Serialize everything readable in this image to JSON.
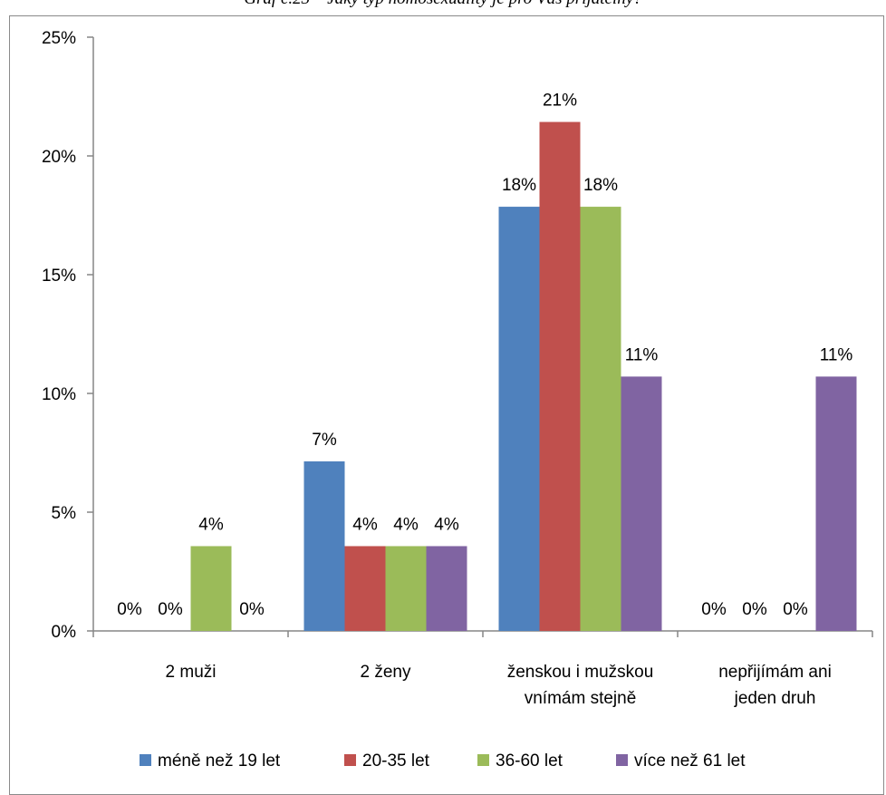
{
  "caption": "Graf č.23 – Jaký typ homosexuality je pro Vás přijatelný?",
  "chart_data": {
    "type": "bar",
    "title": "",
    "xlabel": "",
    "ylabel": "",
    "ylim": [
      0,
      25
    ],
    "yticks": [
      "0%",
      "5%",
      "10%",
      "15%",
      "20%",
      "25%"
    ],
    "categories": [
      [
        "2 muži"
      ],
      [
        "2 ženy"
      ],
      [
        "ženskou i mužskou",
        "vnímám stejně"
      ],
      [
        "nepřijímám ani",
        "jeden druh"
      ]
    ],
    "series": [
      {
        "name": "méně než 19 let",
        "color": "#4F81BD",
        "values": [
          0,
          7.14,
          17.86,
          0
        ],
        "labels": [
          "0%",
          "7%",
          "18%",
          "0%"
        ]
      },
      {
        "name": "20-35 let",
        "color": "#C0504D",
        "values": [
          0,
          3.57,
          21.43,
          0
        ],
        "labels": [
          "0%",
          "4%",
          "21%",
          "0%"
        ]
      },
      {
        "name": "36-60 let",
        "color": "#9BBB59",
        "values": [
          3.57,
          3.57,
          17.86,
          0
        ],
        "labels": [
          "4%",
          "4%",
          "18%",
          "0%"
        ]
      },
      {
        "name": "více než 61 let",
        "color": "#8064A2",
        "values": [
          0,
          3.57,
          10.71,
          10.71
        ],
        "labels": [
          "0%",
          "4%",
          "11%",
          "11%"
        ]
      }
    ],
    "legend": "bottom",
    "grid": false
  }
}
